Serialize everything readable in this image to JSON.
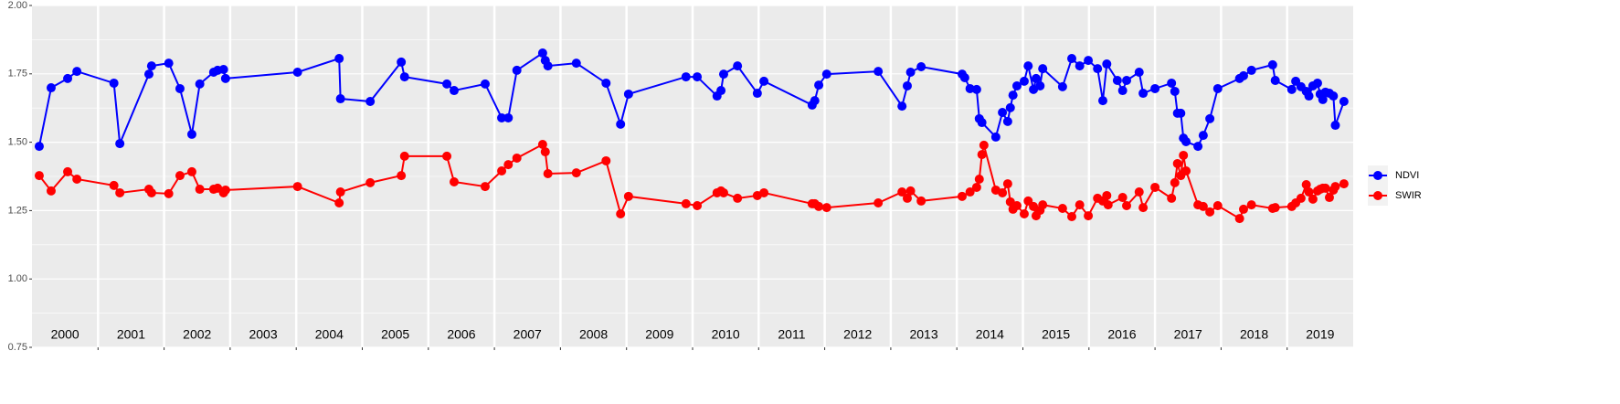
{
  "chart_data": {
    "type": "line",
    "xlim": [
      2000,
      2020
    ],
    "ylim": [
      0.75,
      2.0
    ],
    "yticks": [
      0.75,
      {
        "value": 1.0,
        "label": "1.00"
      },
      1.25,
      {
        "value": 1.5,
        "label": "1.50"
      },
      1.75,
      {
        "value": 2.0,
        "label": "2.00"
      }
    ],
    "y_minor_grid": [
      0.875,
      1.125,
      1.375,
      1.625,
      1.875
    ],
    "x_grid": [
      2001,
      2002,
      2003,
      2004,
      2005,
      2006,
      2007,
      2008,
      2009,
      2010,
      2011,
      2012,
      2013,
      2014,
      2015,
      2016,
      2017,
      2018,
      2019
    ],
    "xticks": [
      {
        "value": 2000.5,
        "label": "2000"
      },
      {
        "value": 2001.5,
        "label": "2001"
      },
      {
        "value": 2002.5,
        "label": "2002"
      },
      {
        "value": 2003.5,
        "label": "2003"
      },
      {
        "value": 2004.5,
        "label": "2004"
      },
      {
        "value": 2005.5,
        "label": "2005"
      },
      {
        "value": 2006.5,
        "label": "2006"
      },
      {
        "value": 2007.5,
        "label": "2007"
      },
      {
        "value": 2008.5,
        "label": "2008"
      },
      {
        "value": 2009.5,
        "label": "2009"
      },
      {
        "value": 2010.5,
        "label": "2010"
      },
      {
        "value": 2011.5,
        "label": "2011"
      },
      {
        "value": 2012.5,
        "label": "2012"
      },
      {
        "value": 2013.5,
        "label": "2013"
      },
      {
        "value": 2014.5,
        "label": "2014"
      },
      {
        "value": 2015.5,
        "label": "2015"
      },
      {
        "value": 2016.5,
        "label": "2016"
      },
      {
        "value": 2017.5,
        "label": "2017"
      },
      {
        "value": 2018.5,
        "label": "2018"
      },
      {
        "value": 2019.5,
        "label": "2019"
      }
    ],
    "grid": true,
    "legend": "right",
    "series": [
      {
        "name": "NDVI",
        "color": "#0000ff",
        "x": [
          2000.11,
          2000.29,
          2000.54,
          2000.68,
          2001.24,
          2001.33,
          2001.77,
          2001.81,
          2002.07,
          2002.24,
          2002.42,
          2002.54,
          2002.75,
          2002.81,
          2002.9,
          2002.93,
          2004.02,
          2004.65,
          2004.67,
          2005.12,
          2005.59,
          2005.64,
          2006.28,
          2006.39,
          2006.86,
          2007.11,
          2007.21,
          2007.34,
          2007.73,
          2007.77,
          2007.81,
          2008.24,
          2008.69,
          2008.91,
          2009.03,
          2009.9,
          2010.07,
          2010.37,
          2010.43,
          2010.47,
          2010.68,
          2010.98,
          2011.08,
          2011.81,
          2011.85,
          2011.91,
          2012.03,
          2012.81,
          2013.17,
          2013.25,
          2013.3,
          2013.46,
          2014.08,
          2014.12,
          2014.2,
          2014.3,
          2014.34,
          2014.38,
          2014.59,
          2014.69,
          2014.77,
          2014.81,
          2014.85,
          2014.91,
          2015.02,
          2015.08,
          2015.16,
          2015.2,
          2015.26,
          2015.3,
          2015.6,
          2015.74,
          2015.86,
          2015.99,
          2016.13,
          2016.21,
          2016.27,
          2016.43,
          2016.51,
          2016.57,
          2016.76,
          2016.82,
          2017.0,
          2017.25,
          2017.3,
          2017.34,
          2017.39,
          2017.43,
          2017.47,
          2017.65,
          2017.73,
          2017.83,
          2017.95,
          2018.28,
          2018.34,
          2018.46,
          2018.78,
          2018.82,
          2019.07,
          2019.13,
          2019.21,
          2019.29,
          2019.33,
          2019.39,
          2019.46,
          2019.5,
          2019.54,
          2019.58,
          2019.64,
          2019.7,
          2019.73,
          2019.86
        ],
        "values": [
          1.485,
          1.699,
          1.733,
          1.759,
          1.716,
          1.495,
          1.749,
          1.779,
          1.789,
          1.696,
          1.529,
          1.713,
          1.756,
          1.763,
          1.766,
          1.733,
          1.756,
          1.806,
          1.659,
          1.649,
          1.793,
          1.739,
          1.713,
          1.689,
          1.713,
          1.589,
          1.589,
          1.763,
          1.826,
          1.799,
          1.779,
          1.789,
          1.716,
          1.566,
          1.676,
          1.739,
          1.739,
          1.669,
          1.689,
          1.749,
          1.779,
          1.679,
          1.723,
          1.636,
          1.652,
          1.709,
          1.749,
          1.759,
          1.632,
          1.706,
          1.756,
          1.776,
          1.749,
          1.736,
          1.696,
          1.693,
          1.586,
          1.572,
          1.519,
          1.609,
          1.576,
          1.626,
          1.672,
          1.706,
          1.723,
          1.779,
          1.693,
          1.733,
          1.706,
          1.769,
          1.703,
          1.806,
          1.779,
          1.799,
          1.769,
          1.652,
          1.786,
          1.726,
          1.689,
          1.726,
          1.756,
          1.679,
          1.696,
          1.716,
          1.686,
          1.606,
          1.606,
          1.515,
          1.502,
          1.485,
          1.525,
          1.586,
          1.696,
          1.733,
          1.743,
          1.763,
          1.783,
          1.726,
          1.693,
          1.723,
          1.703,
          1.686,
          1.669,
          1.706,
          1.716,
          1.676,
          1.656,
          1.683,
          1.679,
          1.669,
          1.562,
          1.649
        ]
      },
      {
        "name": "SWIR",
        "color": "#ff0000",
        "x": [
          2000.11,
          2000.29,
          2000.54,
          2000.68,
          2001.24,
          2001.33,
          2001.77,
          2001.81,
          2002.07,
          2002.24,
          2002.42,
          2002.54,
          2002.75,
          2002.81,
          2002.9,
          2002.93,
          2004.02,
          2004.65,
          2004.67,
          2005.12,
          2005.59,
          2005.64,
          2006.28,
          2006.39,
          2006.86,
          2007.11,
          2007.21,
          2007.34,
          2007.73,
          2007.77,
          2007.81,
          2008.24,
          2008.69,
          2008.91,
          2009.03,
          2009.9,
          2010.07,
          2010.37,
          2010.43,
          2010.47,
          2010.68,
          2010.98,
          2011.08,
          2011.81,
          2011.85,
          2011.91,
          2012.03,
          2012.81,
          2013.17,
          2013.25,
          2013.3,
          2013.46,
          2014.08,
          2014.2,
          2014.3,
          2014.34,
          2014.38,
          2014.41,
          2014.59,
          2014.69,
          2014.77,
          2014.81,
          2014.85,
          2014.91,
          2015.02,
          2015.08,
          2015.16,
          2015.2,
          2015.26,
          2015.3,
          2015.6,
          2015.74,
          2015.86,
          2015.99,
          2016.13,
          2016.21,
          2016.27,
          2016.29,
          2016.51,
          2016.57,
          2016.76,
          2016.82,
          2017.0,
          2017.25,
          2017.3,
          2017.34,
          2017.39,
          2017.43,
          2017.47,
          2017.65,
          2017.73,
          2017.83,
          2017.95,
          2018.28,
          2018.34,
          2018.46,
          2018.78,
          2018.82,
          2019.07,
          2019.13,
          2019.21,
          2019.29,
          2019.33,
          2019.39,
          2019.46,
          2019.5,
          2019.54,
          2019.58,
          2019.64,
          2019.7,
          2019.73,
          2019.86
        ],
        "values": [
          1.378,
          1.322,
          1.392,
          1.365,
          1.342,
          1.315,
          1.328,
          1.315,
          1.312,
          1.378,
          1.392,
          1.328,
          1.328,
          1.332,
          1.315,
          1.325,
          1.338,
          1.278,
          1.318,
          1.352,
          1.378,
          1.449,
          1.449,
          1.355,
          1.338,
          1.395,
          1.418,
          1.442,
          1.492,
          1.465,
          1.385,
          1.388,
          1.432,
          1.238,
          1.302,
          1.275,
          1.268,
          1.315,
          1.322,
          1.315,
          1.295,
          1.305,
          1.315,
          1.275,
          1.275,
          1.265,
          1.261,
          1.278,
          1.318,
          1.295,
          1.322,
          1.285,
          1.302,
          1.318,
          1.335,
          1.365,
          1.455,
          1.489,
          1.325,
          1.315,
          1.348,
          1.282,
          1.255,
          1.268,
          1.238,
          1.285,
          1.265,
          1.231,
          1.251,
          1.271,
          1.258,
          1.228,
          1.271,
          1.231,
          1.295,
          1.285,
          1.305,
          1.271,
          1.298,
          1.268,
          1.318,
          1.261,
          1.335,
          1.295,
          1.352,
          1.422,
          1.378,
          1.452,
          1.395,
          1.271,
          1.265,
          1.245,
          1.268,
          1.221,
          1.255,
          1.271,
          1.258,
          1.261,
          1.265,
          1.278,
          1.295,
          1.345,
          1.318,
          1.292,
          1.322,
          1.328,
          1.332,
          1.332,
          1.298,
          1.325,
          1.338,
          1.348
        ]
      }
    ]
  }
}
